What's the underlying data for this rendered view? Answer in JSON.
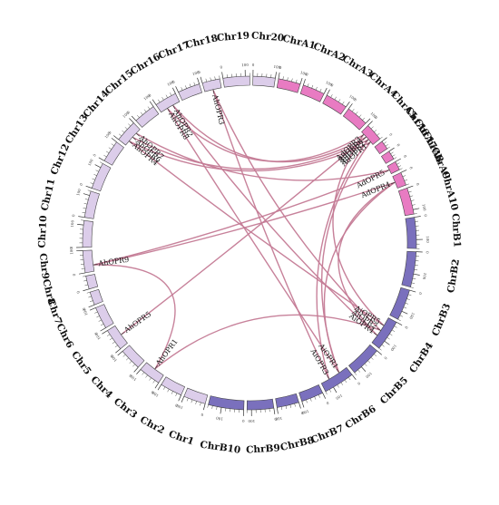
{
  "colors": {
    "A": "#e87bc2",
    "B": "#7a70bd",
    "Chr": "#dccdea",
    "link": "#c47a95",
    "outline": "#444444"
  },
  "chromosomes": [
    {
      "id": "A1",
      "label": "ChrA1",
      "group": "A",
      "len": 5
    },
    {
      "id": "A2",
      "label": "ChrA2",
      "group": "A",
      "len": 5
    },
    {
      "id": "A3",
      "label": "ChrA3",
      "group": "A",
      "len": 5
    },
    {
      "id": "A4",
      "label": "ChrA4",
      "group": "A",
      "len": 5
    },
    {
      "id": "A5",
      "label": "ChrA5",
      "group": "A",
      "len": 4
    },
    {
      "id": "A6",
      "label": "ChrA6",
      "group": "A",
      "len": 2
    },
    {
      "id": "A7",
      "label": "ChrA7",
      "group": "A",
      "len": 2
    },
    {
      "id": "A8",
      "label": "ChrA8",
      "group": "A",
      "len": 2
    },
    {
      "id": "A9",
      "label": "ChrA9",
      "group": "A",
      "len": 3
    },
    {
      "id": "A10",
      "label": "ChrA10",
      "group": "A",
      "len": 6
    },
    {
      "id": "B1",
      "label": "ChrB1",
      "group": "B",
      "len": 7
    },
    {
      "id": "B2",
      "label": "ChrB2",
      "group": "B",
      "len": 8
    },
    {
      "id": "B3",
      "label": "ChrB3",
      "group": "B",
      "len": 7
    },
    {
      "id": "B4",
      "label": "ChrB4",
      "group": "B",
      "len": 7
    },
    {
      "id": "B5",
      "label": "ChrB5",
      "group": "B",
      "len": 7
    },
    {
      "id": "B6",
      "label": "ChrB6",
      "group": "B",
      "len": 7
    },
    {
      "id": "B7",
      "label": "ChrB7",
      "group": "B",
      "len": 5
    },
    {
      "id": "B8",
      "label": "ChrB8",
      "group": "B",
      "len": 5
    },
    {
      "id": "B9",
      "label": "ChrB9",
      "group": "B",
      "len": 6
    },
    {
      "id": "B10",
      "label": "ChrB10",
      "group": "B",
      "len": 8
    },
    {
      "id": "C1",
      "label": "Chr1",
      "group": "Chr",
      "len": 5
    },
    {
      "id": "C2",
      "label": "Chr2",
      "group": "Chr",
      "len": 5
    },
    {
      "id": "C3",
      "label": "Chr3",
      "group": "Chr",
      "len": 5
    },
    {
      "id": "C4",
      "label": "Chr4",
      "group": "Chr",
      "len": 5
    },
    {
      "id": "C5",
      "label": "Chr5",
      "group": "Chr",
      "len": 5
    },
    {
      "id": "C6",
      "label": "Chr6",
      "group": "Chr",
      "len": 5
    },
    {
      "id": "C7",
      "label": "Chr7",
      "group": "Chr",
      "len": 3
    },
    {
      "id": "C8",
      "label": "Chr8",
      "group": "Chr",
      "len": 3
    },
    {
      "id": "C9",
      "label": "Chr9",
      "group": "Chr",
      "len": 5
    },
    {
      "id": "C10",
      "label": "Chr10",
      "group": "Chr",
      "len": 6
    },
    {
      "id": "C11",
      "label": "Chr11",
      "group": "Chr",
      "len": 6
    },
    {
      "id": "C12",
      "label": "Chr12",
      "group": "Chr",
      "len": 6
    },
    {
      "id": "C13",
      "label": "Chr13",
      "group": "Chr",
      "len": 5
    },
    {
      "id": "C14",
      "label": "Chr14",
      "group": "Chr",
      "len": 5
    },
    {
      "id": "C15",
      "label": "Chr15",
      "group": "Chr",
      "len": 5
    },
    {
      "id": "C16",
      "label": "Chr16",
      "group": "Chr",
      "len": 5
    },
    {
      "id": "C17",
      "label": "Chr17",
      "group": "Chr",
      "len": 5
    },
    {
      "id": "C18",
      "label": "Chr18",
      "group": "Chr",
      "len": 4
    },
    {
      "id": "C19",
      "label": "Chr19",
      "group": "Chr",
      "len": 6
    },
    {
      "id": "C20",
      "label": "Chr20",
      "group": "Chr",
      "len": 5
    }
  ],
  "tick_labels": [
    "0",
    "100",
    "200",
    "300"
  ],
  "genes": [
    {
      "name": "AdOPR3",
      "chr": "A5",
      "pos": 0.2
    },
    {
      "name": "AdOPR6",
      "chr": "A5",
      "pos": 0.4
    },
    {
      "name": "AdOPR2",
      "chr": "A5",
      "pos": 0.6
    },
    {
      "name": "AdOPR1",
      "chr": "A5",
      "pos": 0.8
    },
    {
      "name": "AdOPR5",
      "chr": "A8",
      "pos": 0.5
    },
    {
      "name": "AdOPR4",
      "chr": "A9",
      "pos": 0.5
    },
    {
      "name": "AiOPR5",
      "chr": "B4",
      "pos": 0.3
    },
    {
      "name": "AiOPR2",
      "chr": "B4",
      "pos": 0.5
    },
    {
      "name": "AiOPR4",
      "chr": "B4",
      "pos": 0.7
    },
    {
      "name": "AiOPR1",
      "chr": "B6",
      "pos": 0.3
    },
    {
      "name": "AiOPR3",
      "chr": "B6",
      "pos": 0.7
    },
    {
      "name": "AhOPR1",
      "chr": "C3",
      "pos": 0.5
    },
    {
      "name": "AhOPR5",
      "chr": "C5",
      "pos": 0.5
    },
    {
      "name": "AhOPR9",
      "chr": "C9",
      "pos": 0.3
    },
    {
      "name": "AhOPR4",
      "chr": "C14",
      "pos": 0.25
    },
    {
      "name": "AhOPR6",
      "chr": "C14",
      "pos": 0.5
    },
    {
      "name": "AhOPR7",
      "chr": "C14",
      "pos": 0.75
    },
    {
      "name": "AhOPR8",
      "chr": "C16",
      "pos": 0.35
    },
    {
      "name": "AhOPR2",
      "chr": "C16",
      "pos": 0.65
    },
    {
      "name": "AhOPR3",
      "chr": "C18",
      "pos": 0.5
    }
  ],
  "links": [
    [
      "AdOPR1",
      "AhOPR4"
    ],
    [
      "AdOPR2",
      "AhOPR6"
    ],
    [
      "AdOPR3",
      "AhOPR8"
    ],
    [
      "AdOPR6",
      "AhOPR2"
    ],
    [
      "AdOPR1",
      "AiOPR1"
    ],
    [
      "AdOPR2",
      "AiOPR3"
    ],
    [
      "AdOPR4",
      "AhOPR9"
    ],
    [
      "AdOPR5",
      "AhOPR9"
    ],
    [
      "AdOPR4",
      "AiOPR4"
    ],
    [
      "AdOPR5",
      "AhOPR7"
    ],
    [
      "AiOPR5",
      "AhOPR4"
    ],
    [
      "AiOPR2",
      "AhOPR3"
    ],
    [
      "AiOPR4",
      "AhOPR2"
    ],
    [
      "AiOPR1",
      "AhOPR8"
    ],
    [
      "AiOPR3",
      "AhOPR3"
    ],
    [
      "AiOPR5",
      "AdOPR3"
    ],
    [
      "AhOPR9",
      "AhOPR1"
    ],
    [
      "AhOPR5",
      "AdOPR6"
    ],
    [
      "AhOPR1",
      "AiOPR2"
    ],
    [
      "AiOPR1",
      "AdOPR4"
    ]
  ]
}
